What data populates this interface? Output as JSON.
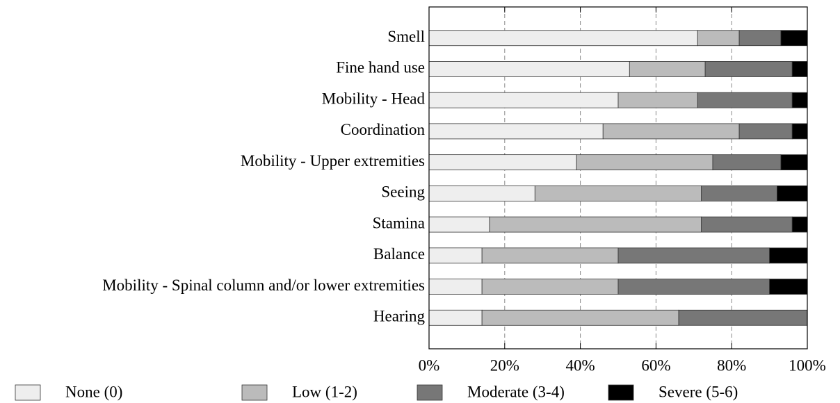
{
  "chart_data": {
    "type": "stacked_barh",
    "categories": [
      "Smell",
      "Fine hand use",
      "Mobility - Head",
      "Coordination",
      "Mobility - Upper extremities",
      "Seeing",
      "Stamina",
      "Balance",
      "Mobility - Spinal column and/or lower extremities",
      "Hearing"
    ],
    "series": [
      {
        "name": "None (0)",
        "color": "#eeeeee",
        "values": [
          71,
          53,
          50,
          46,
          39,
          28,
          16,
          14,
          14,
          14
        ]
      },
      {
        "name": "Low (1-2)",
        "color": "#bbbbbb",
        "values": [
          11,
          20,
          21,
          36,
          36,
          44,
          56,
          36,
          36,
          52
        ]
      },
      {
        "name": "Moderate (3-4)",
        "color": "#777777",
        "values": [
          11,
          23,
          25,
          14,
          18,
          20,
          24,
          40,
          40,
          34
        ]
      },
      {
        "name": "Severe (5-6)",
        "color": "#000000",
        "values": [
          7,
          4,
          4,
          4,
          7,
          8,
          4,
          10,
          10,
          0
        ]
      }
    ],
    "xlim": [
      0,
      100
    ],
    "xticks": [
      {
        "value": 0,
        "label": "0%"
      },
      {
        "value": 20,
        "label": "20%"
      },
      {
        "value": 40,
        "label": "40%"
      },
      {
        "value": 60,
        "label": "60%"
      },
      {
        "value": 80,
        "label": "80%"
      },
      {
        "value": 100,
        "label": "100%"
      }
    ],
    "grid": true,
    "legend": "bottom"
  }
}
